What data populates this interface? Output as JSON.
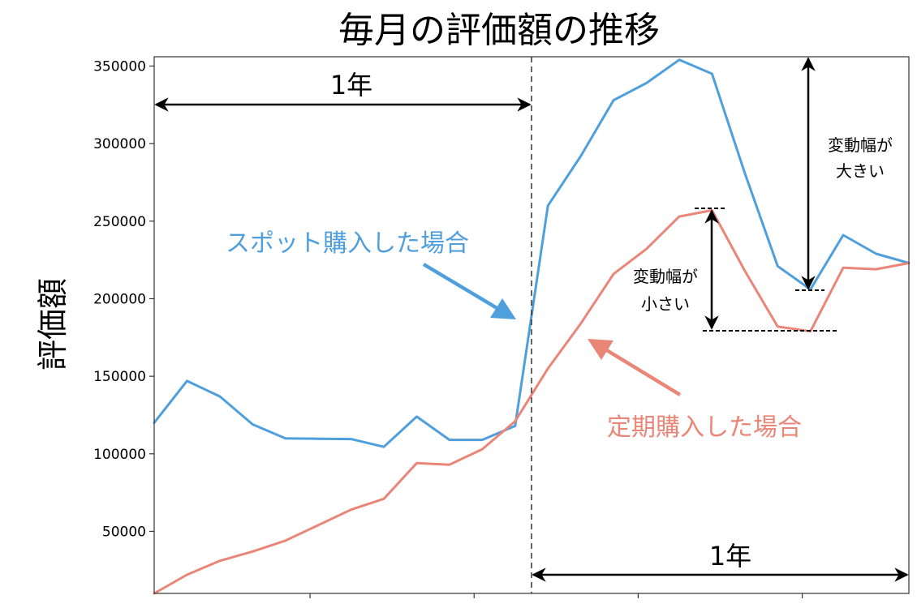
{
  "chart_data": {
    "type": "line",
    "title": "毎月の評価額の推移",
    "ylabel": "評価額",
    "xlabel": "",
    "ylim": [
      10000,
      356000
    ],
    "y_ticks": [
      50000,
      100000,
      150000,
      200000,
      250000,
      300000,
      350000
    ],
    "x": [
      0,
      1,
      2,
      3,
      4,
      5,
      6,
      7,
      8,
      9,
      10,
      11,
      12,
      13,
      14,
      15,
      16,
      17,
      18,
      19,
      20,
      21,
      22,
      23
    ],
    "xlim": [
      0,
      23
    ],
    "x_tick_positions": [
      4.75,
      9.75,
      14.75,
      19.75
    ],
    "divider_x": 11.5,
    "series": [
      {
        "name": "スポット購入した場合",
        "color": "#4f9fdd",
        "values": [
          120000,
          147000,
          137000,
          119000,
          110000,
          109700,
          109500,
          104500,
          124000,
          109000,
          109000,
          118000,
          260000,
          292000,
          328000,
          339000,
          354000,
          345000,
          281000,
          221000,
          206000,
          241000,
          229000,
          223000
        ]
      },
      {
        "name": "定期購入した場合",
        "color": "#ea8677",
        "values": [
          10000,
          22000,
          31000,
          37000,
          44000,
          54000,
          64000,
          71000,
          94000,
          93000,
          103000,
          121000,
          155000,
          184000,
          216000,
          232000,
          253000,
          257000,
          218000,
          182000,
          179000,
          220000,
          219000,
          223000
        ]
      }
    ],
    "annotations": {
      "period_label_left": "1年",
      "period_label_right": "1年",
      "spot_label": "スポット購入した場合",
      "regular_label": "定期購入した場合",
      "large_swing_line1": "変動幅が",
      "large_swing_line2": "大きい",
      "small_swing_line1": "変動幅が",
      "small_swing_line2": "小さい"
    }
  }
}
